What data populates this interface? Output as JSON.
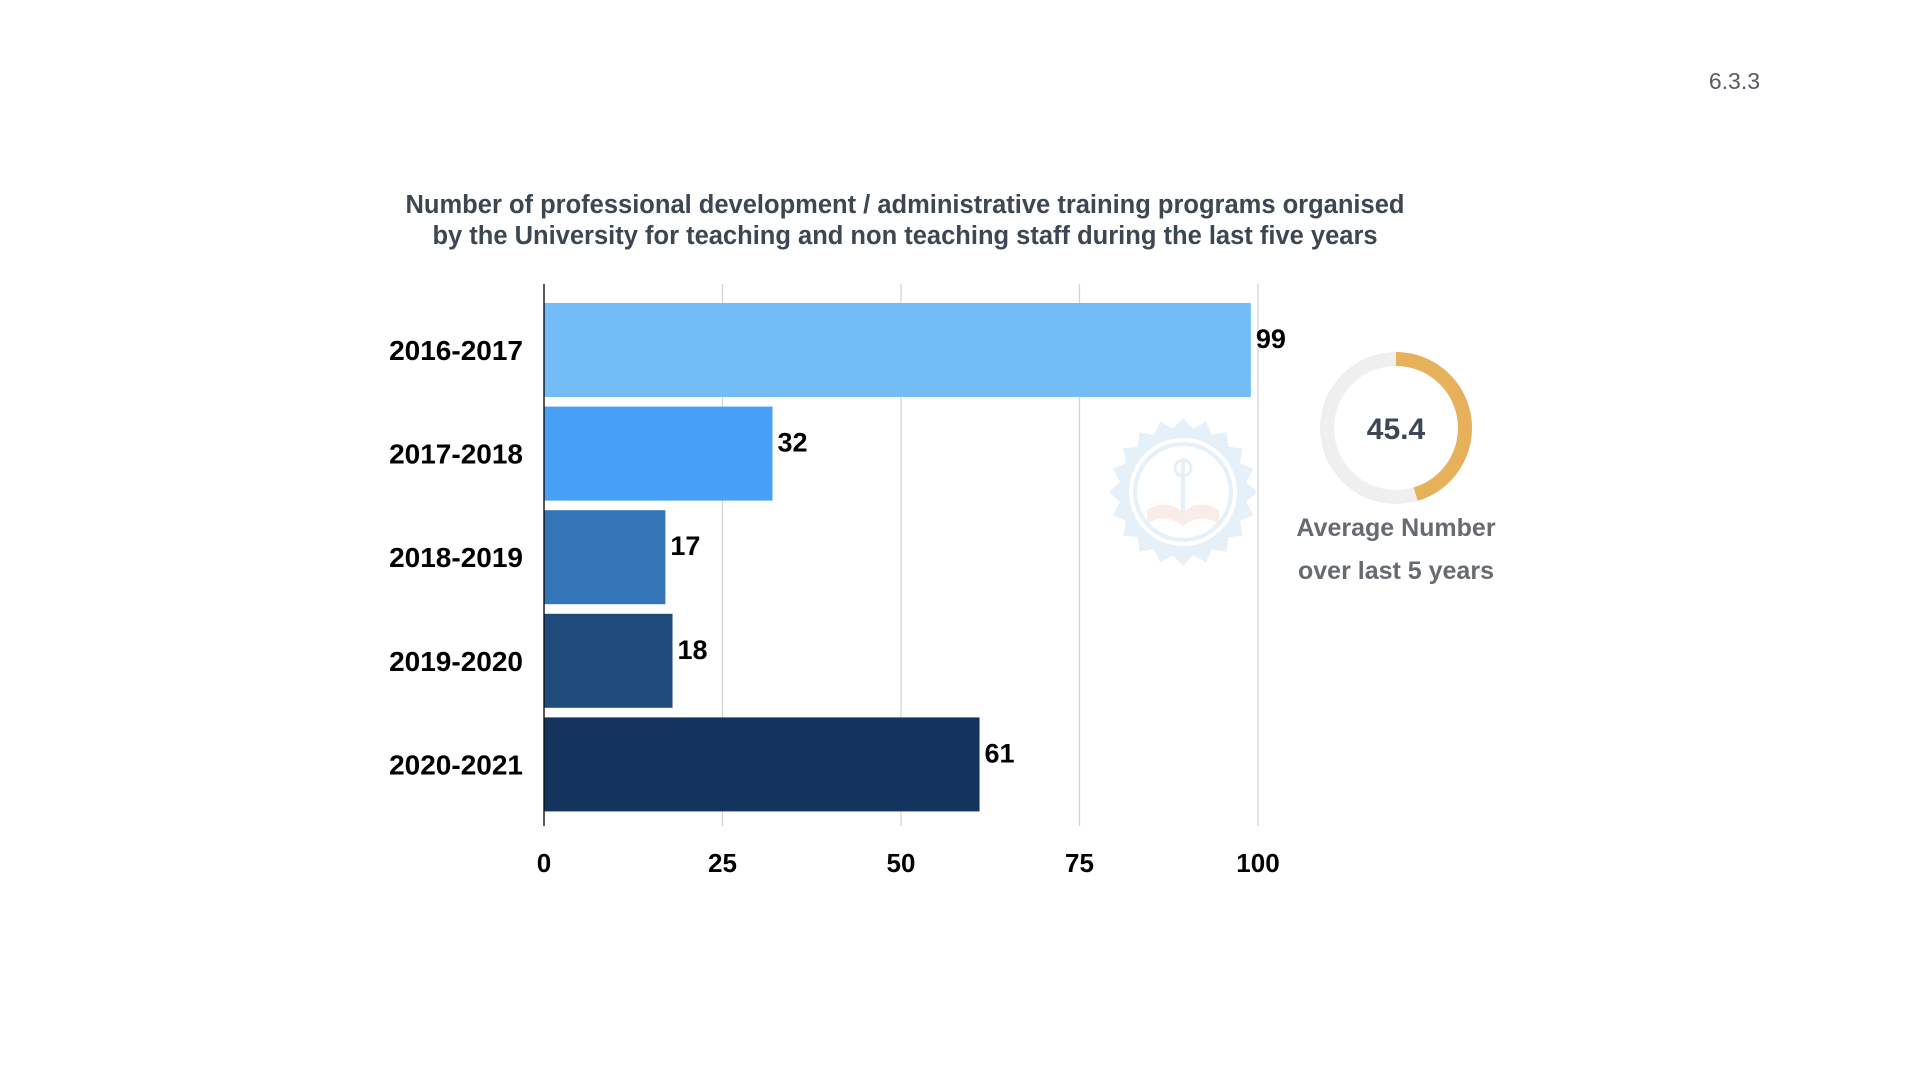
{
  "slide": {
    "number": "6.3.3"
  },
  "chart_data": {
    "type": "bar",
    "orientation": "horizontal",
    "title_lines": [
      "Number of professional development / administrative training programs organised",
      "by the University for teaching and non teaching staff during the last five years"
    ],
    "categories": [
      "2016-2017",
      "2017-2018",
      "2018-2019",
      "2019-2020",
      "2020-2021"
    ],
    "values": [
      99,
      32,
      17,
      18,
      61
    ],
    "bar_colors": [
      "#72bdf7",
      "#479ff6",
      "#3375b6",
      "#1f4c7d",
      "#14345f"
    ],
    "xlim": [
      0,
      100
    ],
    "x_ticks": [
      0,
      25,
      50,
      75,
      100
    ],
    "grid": "vertical",
    "data_labels": [
      "99",
      "32",
      "17",
      "18",
      "61"
    ]
  },
  "average_gauge": {
    "value": 45.4,
    "display": "45.4",
    "max": 100,
    "caption_lines": [
      "Average Number",
      "over last 5 years"
    ],
    "fill_color": "#e7b05a",
    "track_color": "#efefef"
  },
  "watermark": {
    "icon": "university-seal-icon",
    "color": "#4a90d9"
  }
}
